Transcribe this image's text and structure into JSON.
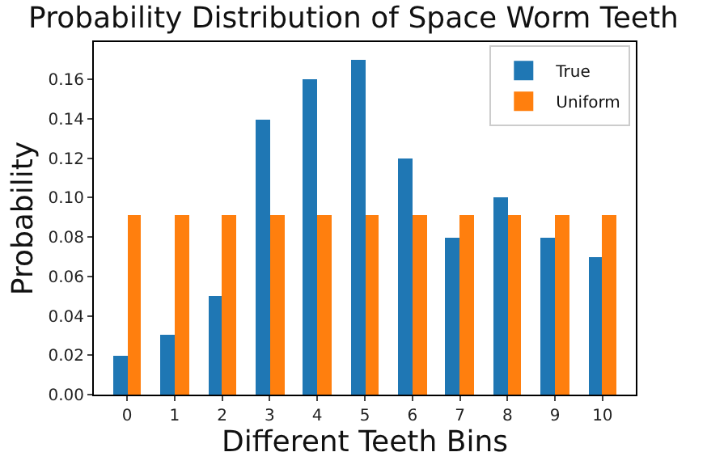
{
  "chart_data": {
    "type": "bar",
    "title": "Probability Distribution of Space Worm Teeth",
    "xlabel": "Different Teeth Bins",
    "ylabel": "Probability",
    "categories": [
      "0",
      "1",
      "2",
      "3",
      "4",
      "5",
      "6",
      "7",
      "8",
      "9",
      "10"
    ],
    "series": [
      {
        "name": "True",
        "color": "#1f77b4",
        "values": [
          0.02,
          0.03,
          0.05,
          0.14,
          0.16,
          0.17,
          0.12,
          0.08,
          0.1,
          0.08,
          0.07
        ]
      },
      {
        "name": "Uniform",
        "color": "#ff7f0e",
        "values": [
          0.091,
          0.091,
          0.091,
          0.091,
          0.091,
          0.091,
          0.091,
          0.091,
          0.091,
          0.091,
          0.091
        ]
      }
    ],
    "ylim": [
      0,
      0.179
    ],
    "yticks": [
      {
        "value": 0,
        "label": "0.00"
      },
      {
        "value": 0.02,
        "label": "0.02"
      },
      {
        "value": 0.04,
        "label": "0.04"
      },
      {
        "value": 0.06,
        "label": "0.06"
      },
      {
        "value": 0.08,
        "label": "0.08"
      },
      {
        "value": 0.1,
        "label": "0.10"
      },
      {
        "value": 0.12,
        "label": "0.12"
      },
      {
        "value": 0.14,
        "label": "0.14"
      },
      {
        "value": 0.16,
        "label": "0.16"
      }
    ],
    "grid": false,
    "legend": "top right"
  }
}
